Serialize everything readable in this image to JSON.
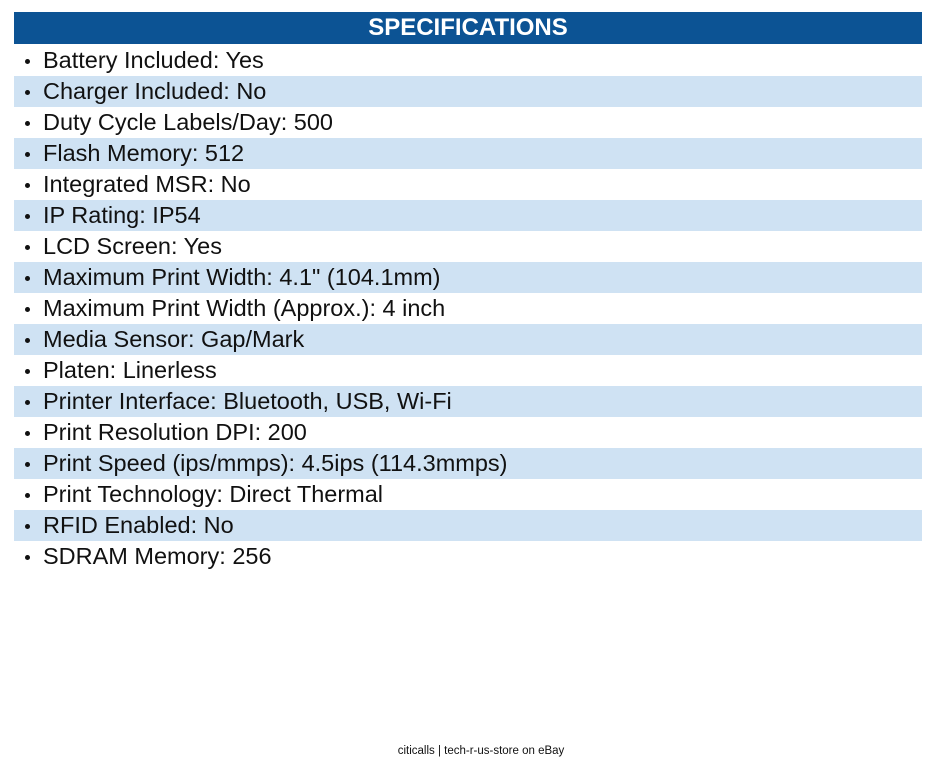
{
  "header": {
    "title": "SPECIFICATIONS"
  },
  "items": [
    "Battery Included: Yes",
    "Charger Included: No",
    "Duty Cycle Labels/Day: 500",
    "Flash Memory: 512",
    "Integrated MSR: No",
    "IP Rating: IP54",
    "LCD Screen: Yes",
    "Maximum Print Width: 4.1\" (104.1mm)",
    "Maximum Print Width (Approx.): 4 inch",
    "Media Sensor: Gap/Mark",
    "Platen: Linerless",
    "Printer Interface: Bluetooth, USB, Wi-Fi",
    "Print Resolution DPI: 200",
    "Print Speed (ips/mmps): 4.5ips (114.3mmps)",
    "Print Technology: Direct Thermal",
    "RFID Enabled: No",
    "SDRAM Memory: 256"
  ],
  "footer": "citicalls | tech-r-us-store on eBay"
}
